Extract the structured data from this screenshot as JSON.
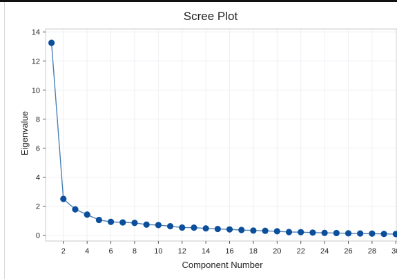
{
  "chart_data": {
    "type": "line",
    "title": "Scree Plot",
    "xlabel": "Component Number",
    "ylabel": "Eigenvalue",
    "xlim": [
      0.5,
      30.1
    ],
    "ylim": [
      -0.4,
      14.2
    ],
    "xticks": [
      2,
      4,
      6,
      8,
      10,
      12,
      14,
      16,
      18,
      20,
      22,
      24,
      26,
      28,
      30
    ],
    "yticks": [
      0,
      2,
      4,
      6,
      8,
      10,
      12,
      14
    ],
    "grid": true,
    "series": [
      {
        "x": [
          1,
          2,
          3,
          4,
          5,
          6,
          7,
          8,
          9,
          10,
          11,
          12,
          13,
          14,
          15,
          16,
          17,
          18,
          19,
          20,
          21,
          22,
          23,
          24,
          25,
          26,
          27,
          28,
          29,
          30
        ],
        "values": [
          13.25,
          2.5,
          1.78,
          1.42,
          1.05,
          0.92,
          0.88,
          0.85,
          0.73,
          0.7,
          0.62,
          0.53,
          0.52,
          0.47,
          0.43,
          0.4,
          0.36,
          0.32,
          0.3,
          0.27,
          0.22,
          0.21,
          0.18,
          0.16,
          0.15,
          0.13,
          0.12,
          0.11,
          0.09,
          0.08
        ]
      }
    ],
    "colors": {
      "line": "#4a7fb5",
      "marker": "#0b4f9c",
      "grid": "#eef0f4",
      "frame": "#c9c9c9"
    }
  }
}
